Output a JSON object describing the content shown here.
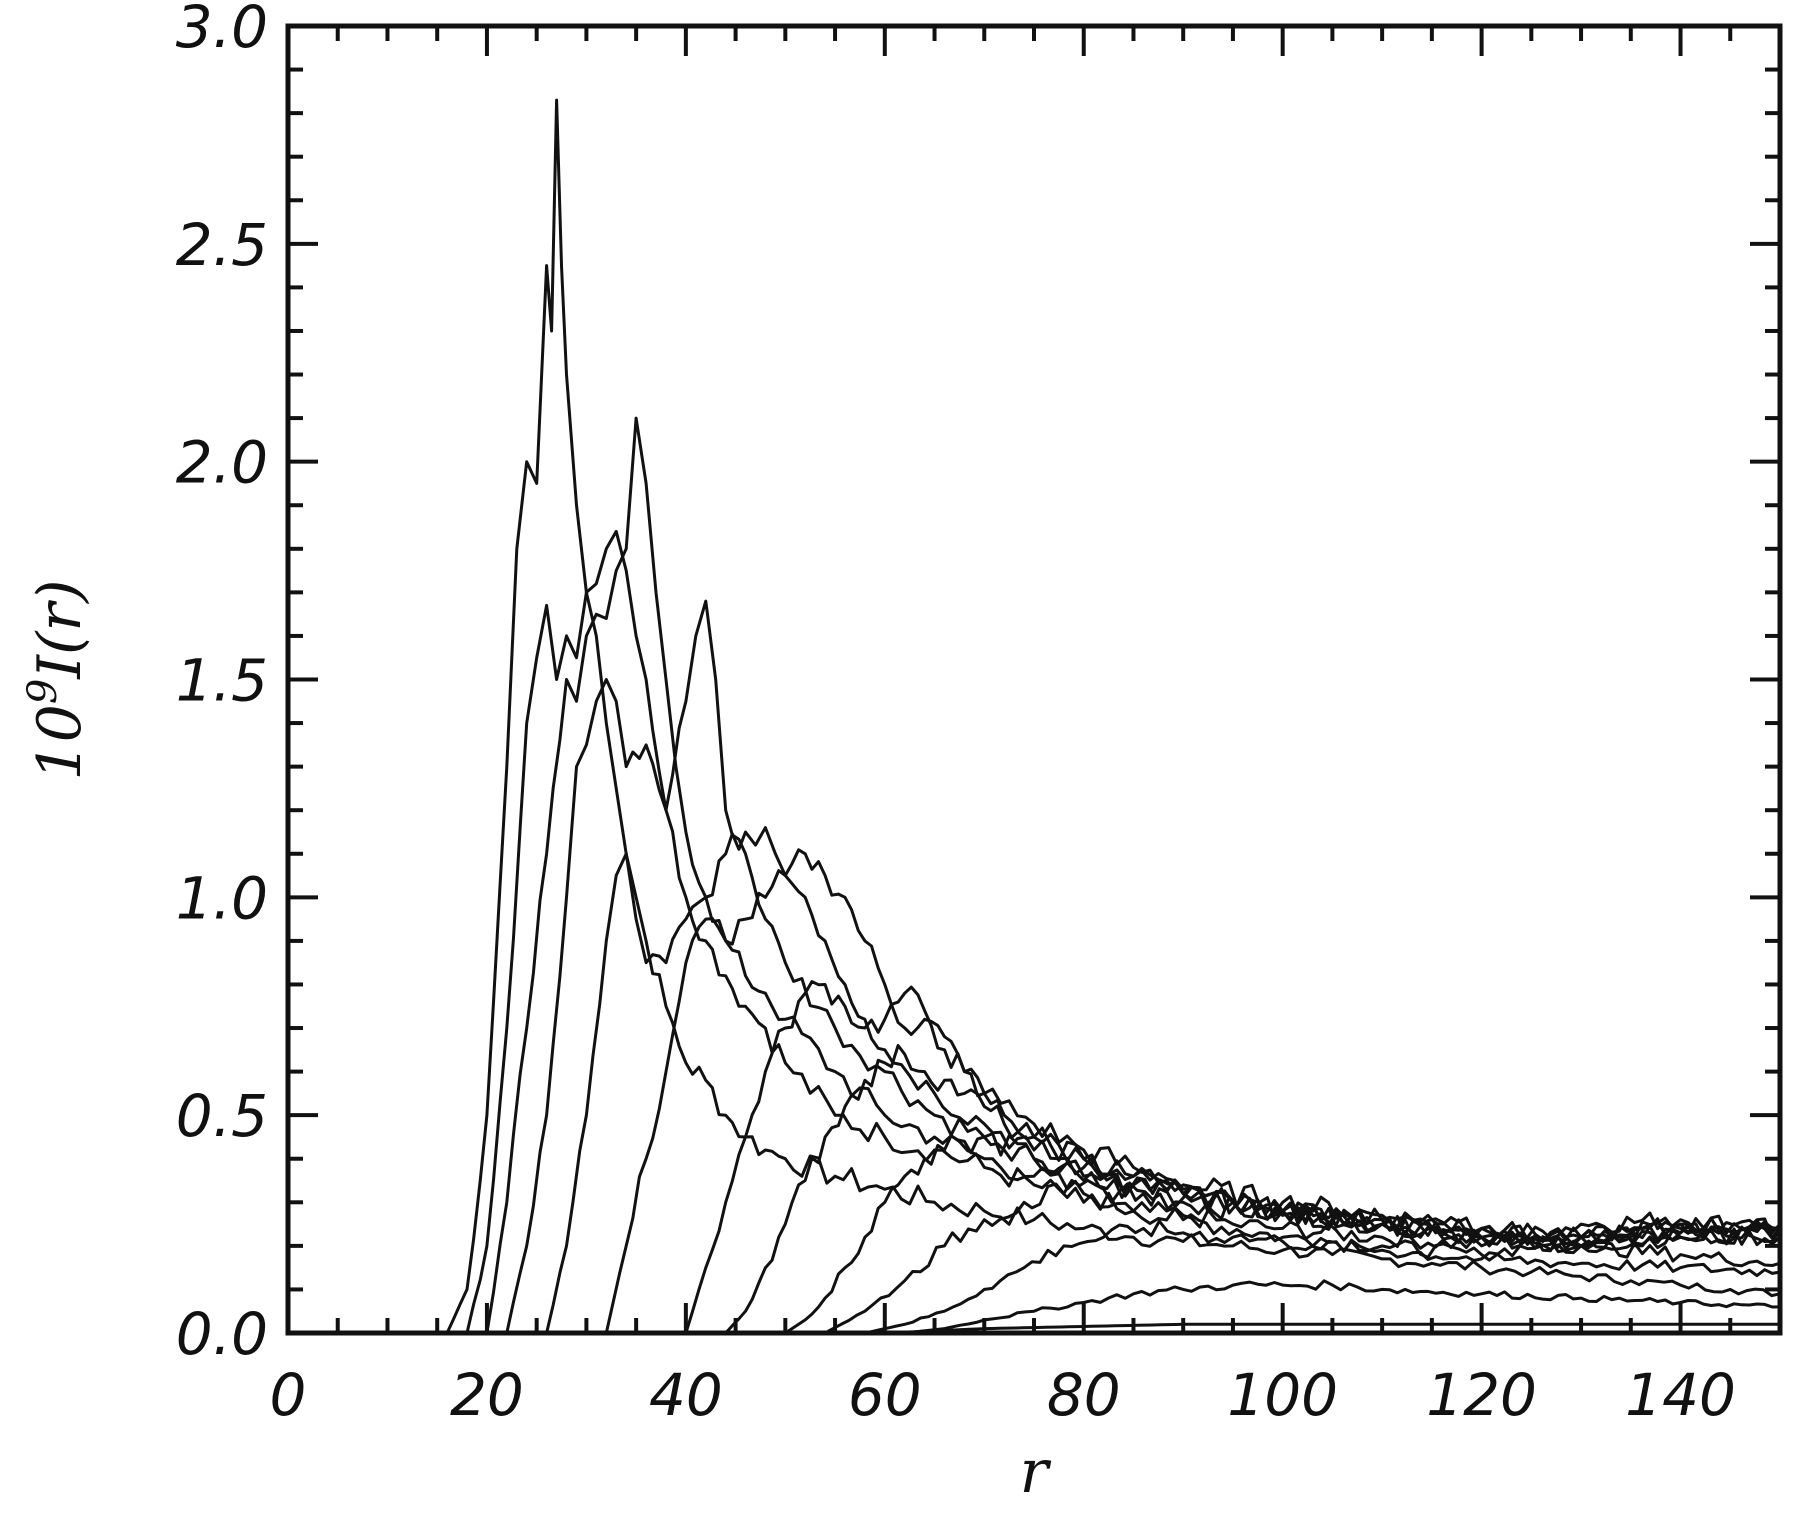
{
  "chart_data": {
    "type": "line",
    "title": "",
    "xlabel": "r",
    "ylabel_base": "10",
    "ylabel_exp": "9",
    "ylabel_rest": "I(r)",
    "xlim": [
      0,
      150
    ],
    "ylim": [
      0,
      3.0
    ],
    "x_ticks": [
      0,
      20,
      40,
      60,
      80,
      100,
      120,
      140
    ],
    "x_tick_labels": [
      "0",
      "20",
      "40",
      "60",
      "80",
      "100",
      "120",
      "140"
    ],
    "y_ticks": [
      0,
      0.5,
      1.0,
      1.5,
      2.0,
      2.5,
      3.0
    ],
    "y_tick_labels": [
      "0.0",
      "0.5",
      "1.0",
      "1.5",
      "2.0",
      "2.5",
      "3.0"
    ],
    "grid": false,
    "line_color": "#111111",
    "series": [
      {
        "x": [
          16,
          18,
          20,
          22,
          23,
          24,
          25,
          26,
          26.5,
          27,
          27.5,
          28,
          29,
          30,
          31,
          32,
          33,
          34,
          35,
          36,
          38,
          40,
          42,
          44,
          46,
          48,
          50,
          55,
          60,
          65,
          70,
          75,
          80,
          85,
          90,
          95,
          100,
          105,
          110,
          115,
          120,
          125,
          130,
          135,
          140,
          145,
          150
        ],
        "values": [
          0,
          0.1,
          0.5,
          1.3,
          1.8,
          2.0,
          1.95,
          2.45,
          2.3,
          2.83,
          2.45,
          2.2,
          1.9,
          1.7,
          1.6,
          1.4,
          1.25,
          1.1,
          1.0,
          0.9,
          0.75,
          0.62,
          0.58,
          0.5,
          0.45,
          0.42,
          0.4,
          0.36,
          0.33,
          0.3,
          0.28,
          0.26,
          0.24,
          0.22,
          0.21,
          0.2,
          0.19,
          0.18,
          0.17,
          0.16,
          0.15,
          0.14,
          0.13,
          0.12,
          0.11,
          0.1,
          0.09
        ]
      },
      {
        "x": [
          18,
          20,
          22,
          24,
          25,
          26,
          27,
          28,
          29,
          30,
          31,
          32,
          33,
          34,
          35,
          36,
          38,
          40,
          42,
          44,
          46,
          48,
          50,
          55,
          60,
          65,
          70,
          75,
          80,
          85,
          90,
          95,
          100,
          110,
          120,
          130,
          140,
          150
        ],
        "values": [
          0,
          0.2,
          0.7,
          1.4,
          1.55,
          1.67,
          1.5,
          1.6,
          1.55,
          1.7,
          1.72,
          1.8,
          1.84,
          1.75,
          1.6,
          1.5,
          1.2,
          1.0,
          0.9,
          0.82,
          0.75,
          0.7,
          0.62,
          0.5,
          0.45,
          0.42,
          0.38,
          0.34,
          0.3,
          0.28,
          0.27,
          0.25,
          0.24,
          0.22,
          0.2,
          0.25,
          0.26,
          0.24
        ]
      },
      {
        "x": [
          20,
          22,
          24,
          26,
          28,
          29,
          30,
          31,
          32,
          33,
          34,
          35,
          36,
          37,
          38,
          39,
          40,
          42,
          44,
          46,
          48,
          50,
          55,
          60,
          65,
          70,
          75,
          80,
          85,
          90,
          100,
          110,
          120,
          130,
          140,
          150
        ],
        "values": [
          0,
          0.3,
          0.7,
          1.1,
          1.5,
          1.45,
          1.6,
          1.65,
          1.64,
          1.75,
          1.8,
          2.1,
          1.95,
          1.7,
          1.5,
          1.3,
          1.15,
          1.0,
          0.9,
          0.82,
          0.78,
          0.72,
          0.6,
          0.5,
          0.45,
          0.4,
          0.36,
          0.32,
          0.28,
          0.26,
          0.22,
          0.2,
          0.18,
          0.22,
          0.25,
          0.24
        ]
      },
      {
        "x": [
          22,
          24,
          26,
          28,
          29,
          30,
          31,
          32,
          33,
          34,
          36,
          38,
          40,
          41,
          42,
          43,
          44,
          46,
          48,
          50,
          55,
          60,
          65,
          70,
          75,
          80,
          90,
          100,
          110,
          120,
          130,
          140,
          150
        ],
        "values": [
          0,
          0.2,
          0.5,
          1.0,
          1.3,
          1.35,
          1.45,
          1.5,
          1.45,
          1.3,
          1.35,
          1.2,
          1.45,
          1.6,
          1.68,
          1.5,
          1.2,
          1.1,
          0.95,
          0.85,
          0.7,
          0.6,
          0.5,
          0.45,
          0.4,
          0.35,
          0.3,
          0.27,
          0.25,
          0.22,
          0.2,
          0.22,
          0.23
        ]
      },
      {
        "x": [
          26,
          28,
          30,
          32,
          33,
          34,
          35,
          36,
          38,
          40,
          42,
          44,
          46,
          47,
          48,
          49,
          50,
          52,
          54,
          56,
          58,
          60,
          65,
          70,
          75,
          80,
          90,
          100,
          110,
          120,
          130,
          140,
          150
        ],
        "values": [
          0,
          0.2,
          0.5,
          0.9,
          1.05,
          1.1,
          0.95,
          0.85,
          0.85,
          0.95,
          1.0,
          1.1,
          1.15,
          1.12,
          1.16,
          1.1,
          1.05,
          1.0,
          0.9,
          0.8,
          0.72,
          0.65,
          0.55,
          0.48,
          0.42,
          0.38,
          0.32,
          0.28,
          0.25,
          0.22,
          0.2,
          0.22,
          0.22
        ]
      },
      {
        "x": [
          32,
          34,
          36,
          38,
          40,
          42,
          44,
          46,
          48,
          50,
          52,
          54,
          56,
          58,
          60,
          62,
          64,
          66,
          68,
          70,
          75,
          80,
          85,
          90,
          100,
          110,
          120,
          130,
          140,
          150
        ],
        "values": [
          0,
          0.2,
          0.4,
          0.6,
          0.85,
          0.95,
          0.9,
          0.95,
          1.0,
          1.05,
          1.1,
          1.05,
          1.0,
          0.9,
          0.8,
          0.7,
          0.72,
          0.68,
          0.6,
          0.55,
          0.48,
          0.42,
          0.38,
          0.34,
          0.3,
          0.27,
          0.24,
          0.22,
          0.25,
          0.24
        ]
      },
      {
        "x": [
          40,
          42,
          44,
          46,
          48,
          50,
          52,
          54,
          56,
          58,
          60,
          62,
          64,
          66,
          68,
          70,
          72,
          75,
          80,
          85,
          90,
          100,
          110,
          120,
          130,
          140,
          150
        ],
        "values": [
          0,
          0.15,
          0.3,
          0.45,
          0.6,
          0.7,
          0.78,
          0.8,
          0.75,
          0.7,
          0.72,
          0.78,
          0.74,
          0.65,
          0.6,
          0.55,
          0.5,
          0.45,
          0.4,
          0.36,
          0.32,
          0.28,
          0.25,
          0.22,
          0.2,
          0.23,
          0.24
        ]
      },
      {
        "x": [
          44,
          46,
          48,
          50,
          52,
          54,
          56,
          58,
          60,
          62,
          64,
          66,
          68,
          70,
          72,
          75,
          80,
          85,
          90,
          95,
          100,
          110,
          120,
          130,
          140,
          150
        ],
        "values": [
          0,
          0.05,
          0.15,
          0.25,
          0.35,
          0.45,
          0.52,
          0.58,
          0.62,
          0.64,
          0.6,
          0.58,
          0.55,
          0.52,
          0.48,
          0.45,
          0.4,
          0.36,
          0.33,
          0.3,
          0.28,
          0.26,
          0.24,
          0.22,
          0.24,
          0.25
        ]
      },
      {
        "x": [
          50,
          52,
          54,
          56,
          58,
          60,
          62,
          64,
          66,
          68,
          70,
          72,
          75,
          80,
          85,
          90,
          95,
          100,
          110,
          120,
          130,
          140,
          150
        ],
        "values": [
          0,
          0.03,
          0.08,
          0.15,
          0.22,
          0.3,
          0.36,
          0.4,
          0.42,
          0.44,
          0.45,
          0.42,
          0.4,
          0.36,
          0.34,
          0.32,
          0.3,
          0.28,
          0.26,
          0.24,
          0.22,
          0.23,
          0.22
        ]
      },
      {
        "x": [
          54,
          58,
          62,
          66,
          70,
          74,
          78,
          82,
          86,
          90,
          95,
          100,
          110,
          120,
          130,
          140,
          150
        ],
        "values": [
          0,
          0.05,
          0.12,
          0.2,
          0.26,
          0.3,
          0.32,
          0.33,
          0.32,
          0.31,
          0.3,
          0.28,
          0.25,
          0.22,
          0.2,
          0.18,
          0.16
        ]
      },
      {
        "x": [
          58,
          62,
          66,
          70,
          74,
          78,
          82,
          86,
          90,
          95,
          100,
          110,
          120,
          130,
          140,
          150
        ],
        "values": [
          0,
          0.02,
          0.05,
          0.1,
          0.15,
          0.2,
          0.22,
          0.24,
          0.23,
          0.22,
          0.21,
          0.19,
          0.17,
          0.16,
          0.15,
          0.14
        ]
      },
      {
        "x": [
          62,
          66,
          70,
          75,
          80,
          85,
          90,
          95,
          100,
          105,
          110,
          120,
          130,
          140,
          150
        ],
        "values": [
          0,
          0.01,
          0.03,
          0.05,
          0.07,
          0.09,
          0.1,
          0.11,
          0.11,
          0.11,
          0.1,
          0.09,
          0.08,
          0.07,
          0.06
        ]
      },
      {
        "x": [
          60,
          70,
          80,
          90,
          100,
          110,
          120,
          130,
          140,
          150
        ],
        "values": [
          0,
          0.01,
          0.015,
          0.02,
          0.02,
          0.02,
          0.02,
          0.02,
          0.02,
          0.02
        ]
      }
    ]
  }
}
